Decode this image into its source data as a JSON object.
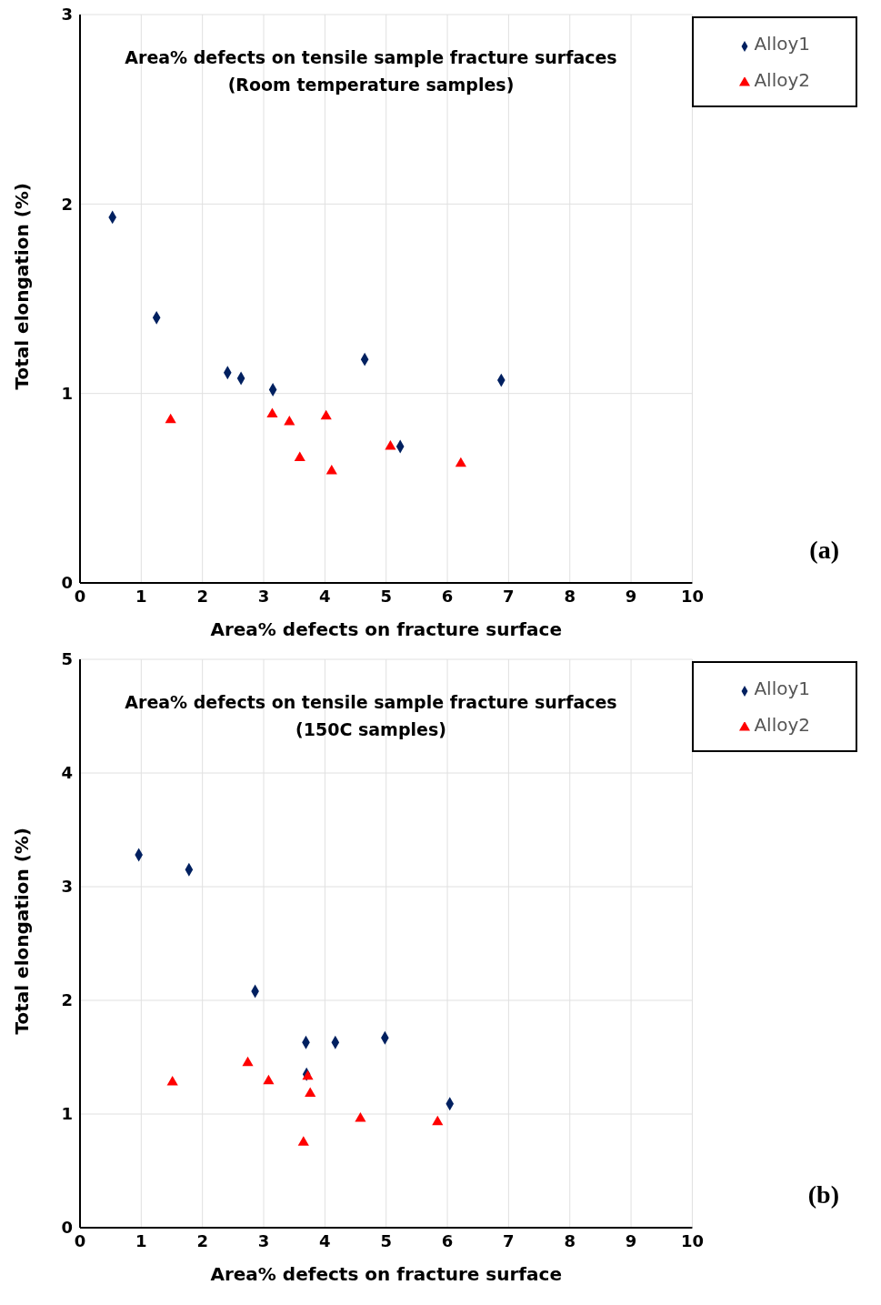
{
  "chart_data": [
    {
      "type": "scatter",
      "title": "Area% defects on tensile sample fracture surfaces",
      "subtitle": "(Room temperature samples)",
      "xlabel": "Area% defects on fracture surface",
      "ylabel": "Total elongation (%)",
      "xlim": [
        0,
        10
      ],
      "xticks": [
        0,
        1,
        2,
        3,
        4,
        5,
        6,
        7,
        8,
        9,
        10
      ],
      "ylim": [
        0,
        3
      ],
      "yticks": [
        0,
        1,
        2,
        3
      ],
      "grid": true,
      "legend": "top right",
      "annotations": [
        "(a)"
      ],
      "series": [
        {
          "name": "Alloy1",
          "color": "#002060",
          "marker": "diamond",
          "x": [
            0.53,
            1.25,
            2.41,
            2.63,
            3.15,
            4.65,
            5.23,
            6.88
          ],
          "values": [
            1.93,
            1.4,
            1.11,
            1.08,
            1.02,
            1.18,
            0.72,
            1.07
          ]
        },
        {
          "name": "Alloy2",
          "color": "#ff0000",
          "marker": "triangle",
          "x": [
            1.48,
            3.14,
            3.42,
            3.59,
            4.02,
            4.11,
            5.07,
            6.22
          ],
          "values": [
            0.86,
            0.89,
            0.85,
            0.66,
            0.88,
            0.59,
            0.72,
            0.63
          ]
        }
      ]
    },
    {
      "type": "scatter",
      "title": "Area% defects on tensile sample fracture surfaces",
      "subtitle": "(150C samples)",
      "xlabel": "Area% defects on fracture surface",
      "ylabel": "Total elongation (%)",
      "xlim": [
        0,
        10
      ],
      "xticks": [
        0,
        1,
        2,
        3,
        4,
        5,
        6,
        7,
        8,
        9,
        10
      ],
      "ylim": [
        0,
        5
      ],
      "yticks": [
        0,
        1,
        2,
        3,
        4,
        5
      ],
      "grid": true,
      "legend": "top right",
      "annotations": [
        "(b)"
      ],
      "series": [
        {
          "name": "Alloy1",
          "color": "#002060",
          "marker": "diamond",
          "x": [
            0.96,
            1.78,
            2.86,
            3.69,
            4.17,
            4.98,
            3.7,
            6.04
          ],
          "values": [
            3.28,
            3.15,
            2.08,
            1.63,
            1.63,
            1.67,
            1.35,
            1.09
          ]
        },
        {
          "name": "Alloy2",
          "color": "#ff0000",
          "marker": "triangle",
          "x": [
            1.51,
            2.74,
            3.08,
            3.72,
            3.76,
            3.65,
            4.58,
            5.84
          ],
          "values": [
            1.28,
            1.45,
            1.29,
            1.33,
            1.18,
            0.75,
            0.96,
            0.93
          ]
        }
      ]
    }
  ]
}
